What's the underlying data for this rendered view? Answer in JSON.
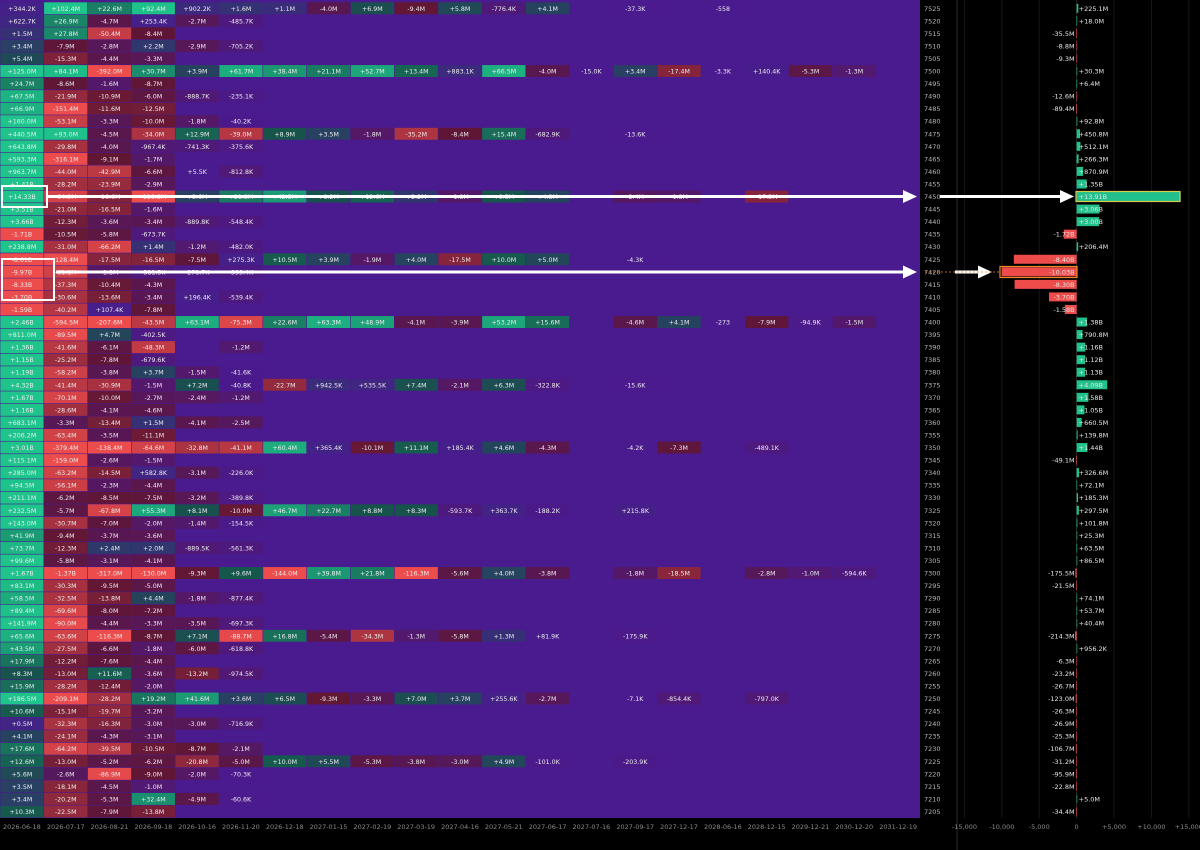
{
  "heatmap": {
    "dates": [
      "2026-06-18",
      "2026-07-17",
      "2026-08-21",
      "2026-09-18",
      "2026-10-16",
      "2026-11-20",
      "2026-12-18",
      "2027-01-15",
      "2027-02-19",
      "2027-03-19",
      "2027-04-16",
      "2027-05-21",
      "2027-06-17",
      "2027-07-16",
      "2027-09-17",
      "2027-12-17",
      "2028-06-16",
      "2028-12-15",
      "2029-12-21",
      "2030-12-20",
      "2031-12-19"
    ],
    "rows": [
      [
        "+344.2K",
        "+102.4M",
        "+22.6M",
        "+92.4M",
        "+902.2K",
        "+1.6M",
        "+1.1M",
        "-4.0M",
        "+6.9M",
        "-9.4M",
        "+5.8M",
        "-776.4K",
        "+4.1M",
        null,
        "-37.3K",
        null,
        "-558"
      ],
      [
        "+622.7K",
        "+26.9M",
        "-4.7M",
        "+253.4K",
        "-2.7M",
        "-485.7K"
      ],
      [
        "+1.5M",
        "+27.8M",
        "-50.4M",
        "-8.4M"
      ],
      [
        "+3.4M",
        "-7.9M",
        "-2.8M",
        "+2.2M",
        "-2.9M",
        "-705.2K"
      ],
      [
        "+5.4M",
        "-15.3M",
        "-4.4M",
        "-3.3M"
      ],
      [
        "+125.0M",
        "+84.1M",
        "-392.0M",
        "+30.7M",
        "+3.9M",
        "+61.7M",
        "+38.4M",
        "+21.1M",
        "+52.7M",
        "+13.4M",
        "+883.1K",
        "+66.5M",
        "-4.0M",
        "-15.0K",
        "+3.4M",
        "-17.4M",
        "-3.3K",
        "+140.4K",
        "-5.3M",
        "-1.3M"
      ],
      [
        "+24.7M",
        "-8.6M",
        "-1.6M",
        "-8.7M"
      ],
      [
        "+67.5M",
        "-21.9M",
        "-10.9M",
        "-6.0M",
        "-888.7K",
        "-235.1K"
      ],
      [
        "+66.9M",
        "-151.4M",
        "-11.6M",
        "-12.5M"
      ],
      [
        "+160.0M",
        "-53.1M",
        "-3.3M",
        "-10.0M",
        "-1.8M",
        "-40.2K"
      ],
      [
        "+440.5M",
        "+93.0M",
        "-4.5M",
        "-34.0M",
        "+12.9M",
        "-39.0M",
        "+8.9M",
        "+3.5M",
        "-1.8M",
        "-35.2M",
        "-8.4M",
        "+15.4M",
        "-682.9K",
        null,
        "-13.6K"
      ],
      [
        "+643.8M",
        "-29.8M",
        "-4.0M",
        "-967.4K",
        "-741.3K",
        "-375.6K"
      ],
      [
        "+593.3M",
        "-316.1M",
        "-9.1M",
        "-1.7M"
      ],
      [
        "+963.7M",
        "-44.0M",
        "-42.9M",
        "-6.6M",
        "+5.5K",
        "-812.8K"
      ],
      [
        "+1.41B",
        "-28.2M",
        "-23.9M",
        "-2.9M"
      ],
      [
        "+14.33B",
        "-64.9M",
        "-16.6M",
        "-116.8M",
        "+3.6M",
        "+21.8M",
        "+42.5M",
        "+8.2M",
        "+12.6M",
        "+2.2M",
        "-1.8M",
        "+9.5M",
        "+4.3M",
        null,
        "-2.4M",
        "-1.8M",
        null,
        "-17.3M"
      ],
      [
        "+3.51B",
        "-21.0M",
        "-16.5M",
        "-1.6M"
      ],
      [
        "+3.66B",
        "-12.3M",
        "-3.6M",
        "-3.4M",
        "-889.8K",
        "-548.4K"
      ],
      [
        "-1.71B",
        "-10.5M",
        "-5.8M",
        "-673.7K"
      ],
      [
        "+238.8M",
        "-31.0M",
        "-66.2M",
        "+1.4M",
        "-1.2M",
        "-482.0K"
      ],
      [
        "-8.61B",
        "-128.4M",
        "-17.5M",
        "-16.5M",
        "-7.5M",
        "+275.3K",
        "+10.5M",
        "+3.9M",
        "-1.9M",
        "+4.0M",
        "-17.5M",
        "+10.0M",
        "+5.0M",
        null,
        "-4.3K"
      ],
      [
        "-9.97B",
        "-61.1M",
        "-1.8M",
        "-581.5K",
        "-278.7K",
        "-399.4K"
      ],
      [
        "-8.33B",
        "-37.3M",
        "-10.4M",
        "-4.3M"
      ],
      [
        "-3.70B",
        "-30.6M",
        "-13.6M",
        "-3.4M",
        "+196.4K",
        "-539.4K"
      ],
      [
        "-1.59B",
        "-40.2M",
        "+107.4K",
        "-7.8M"
      ],
      [
        "+2.46B",
        "-594.5M",
        "-207.6M",
        "-43.5M",
        "+63.1M",
        "-75.3M",
        "+22.6M",
        "+63.3M",
        "+48.9M",
        "-4.1M",
        "-3.9M",
        "+53.2M",
        "+15.6M",
        null,
        "-4.6M",
        "+4.1M",
        "-273",
        "-7.9M",
        "-94.9K",
        "-1.5M"
      ],
      [
        "+811.0M",
        "-89.5M",
        "+4.7M",
        "-402.5K"
      ],
      [
        "+1.36B",
        "-41.6M",
        "-6.1M",
        "-48.3M",
        null,
        "-1.2M"
      ],
      [
        "+1.15B",
        "-25.2M",
        "-7.8M",
        "-679.6K"
      ],
      [
        "+1.19B",
        "-58.2M",
        "-3.8M",
        "+3.7M",
        "-1.5M",
        "-41.6K"
      ],
      [
        "+4.32B",
        "-41.4M",
        "-30.9M",
        "-1.5M",
        "+7.2M",
        "-40.8K",
        "-22.7M",
        "+942.5K",
        "+535.5K",
        "+7.4M",
        "-2.1M",
        "+6.3M",
        "-322.8K",
        null,
        "-15.6K"
      ],
      [
        "+1.67B",
        "-70.1M",
        "-10.0M",
        "-2.7M",
        "-2.4M",
        "-1.2M"
      ],
      [
        "+1.16B",
        "-28.6M",
        "-4.1M",
        "-4.6M"
      ],
      [
        "+683.1M",
        "-3.3M",
        "-13.4M",
        "+1.5M",
        "-4.1M",
        "-2.5M"
      ],
      [
        "+206.2M",
        "-63.4M",
        "-3.5M",
        "-11.1M"
      ],
      [
        "+3.01B",
        "-379.4M",
        "-138.4M",
        "-64.6M",
        "-32.8M",
        "-41.1M",
        "+60.4M",
        "+365.4K",
        "-10.1M",
        "+11.1M",
        "+185.4K",
        "+4.6M",
        "-4.3M",
        null,
        "-4.2K",
        "-7.3M",
        null,
        "-489.1K"
      ],
      [
        "+115.1M",
        "-159.0M",
        "-2.6M",
        "-1.5M"
      ],
      [
        "+285.0M",
        "-63.2M",
        "-14.5M",
        "+582.8K",
        "-3.1M",
        "-226.0K"
      ],
      [
        "+94.5M",
        "-56.1M",
        "-2.3M",
        "-4.4M"
      ],
      [
        "+211.1M",
        "-6.2M",
        "-8.5M",
        "-7.5M",
        "-3.2M",
        "-389.8K"
      ],
      [
        "+232.5M",
        "-5.7M",
        "-67.8M",
        "+55.3M",
        "+8.1M",
        "-10.0M",
        "+46.7M",
        "+22.7M",
        "+8.8M",
        "+8.3M",
        "-593.7K",
        "+363.7K",
        "-188.2K",
        null,
        "+215.8K"
      ],
      [
        "+143.0M",
        "-30.7M",
        "-7.0M",
        "-2.0M",
        "-1.4M",
        "-154.5K"
      ],
      [
        "+41.9M",
        "-9.4M",
        "-3.7M",
        "-3.6M"
      ],
      [
        "+73.7M",
        "-12.3M",
        "+2.4M",
        "+2.0M",
        "-889.5K",
        "-561.3K"
      ],
      [
        "+99.6M",
        "-5.8M",
        "-3.1M",
        "-4.1M"
      ],
      [
        "+1.67B",
        "-1.37B",
        "-317.0M",
        "-130.0M",
        "-9.3M",
        "+9.6M",
        "-144.0M",
        "+39.8M",
        "+21.8M",
        "-116.3M",
        "-5.6M",
        "+4.0M",
        "-3.8M",
        null,
        "-1.8M",
        "-18.5M",
        null,
        "-2.8M",
        "-1.0M",
        "-594.6K"
      ],
      [
        "+83.1M",
        "-30.3M",
        "-9.5M",
        "-5.0M"
      ],
      [
        "+58.5M",
        "-32.5M",
        "-13.8M",
        "+4.4M",
        "-1.8M",
        "-877.4K"
      ],
      [
        "+89.4M",
        "-69.6M",
        "-8.0M",
        "-7.2M"
      ],
      [
        "+141.9M",
        "-90.0M",
        "-4.4M",
        "-3.3M",
        "-3.5M",
        "-697.3K"
      ],
      [
        "+65.6M",
        "-63.6M",
        "-116.3M",
        "-8.7M",
        "+7.1M",
        "-88.7M",
        "+16.8M",
        "-5.4M",
        "-34.3M",
        "-1.3M",
        "-5.8M",
        "+1.3M",
        "+81.9K",
        null,
        "-175.9K"
      ],
      [
        "+43.5M",
        "-27.5M",
        "-6.6M",
        "-1.8M",
        "-6.0M",
        "-618.8K"
      ],
      [
        "+17.9M",
        "-12.2M",
        "-7.6M",
        "-4.4M"
      ],
      [
        "+8.3M",
        "-13.0M",
        "+11.6M",
        "-3.6M",
        "-13.2M",
        "-974.5K"
      ],
      [
        "+15.9M",
        "-28.2M",
        "-12.4M",
        "-2.0M"
      ],
      [
        "+186.5M",
        "-209.1M",
        "-28.2M",
        "+19.2M",
        "+41.6M",
        "+3.6M",
        "+6.5M",
        "-9.3M",
        "-3.3M",
        "+7.0M",
        "+3.7M",
        "+255.6K",
        "-2.7M",
        null,
        "-7.1K",
        "-854.4K",
        null,
        "-797.0K"
      ],
      [
        "+10.6M",
        "-15.1M",
        "-19.7M",
        "-3.2M"
      ],
      [
        "+0.5M",
        "-32.3M",
        "-16.3M",
        "-3.0M",
        "-3.0M",
        "-716.9K"
      ],
      [
        "+4.1M",
        "-24.1M",
        "-4.3M",
        "-3.1M"
      ],
      [
        "+17.6M",
        "-64.2M",
        "-39.5M",
        "-10.5M",
        "-8.7M",
        "-2.1M"
      ],
      [
        "+12.6M",
        "-13.0M",
        "-5.2M",
        "-6.2M",
        "-20.8M",
        "-5.0M",
        "+10.0M",
        "+5.5M",
        "-5.3M",
        "-3.8M",
        "-3.0M",
        "+4.9M",
        "-101.0K",
        null,
        "-203.9K"
      ],
      [
        "+5.6M",
        "-2.6M",
        "-86.9M",
        "-9.0M",
        "-2.0M",
        "-70.3K"
      ],
      [
        "+3.5M",
        "-18.1M",
        "-4.5M",
        "-1.0M"
      ],
      [
        "+3.4M",
        "-20.2M",
        "-5.3M",
        "+32.4M",
        "-4.9M",
        "-60.6K"
      ],
      [
        "+10.3M",
        "-22.5M",
        "-7.9M",
        "-13.8M"
      ]
    ]
  },
  "chart_data": {
    "type": "bar",
    "orientation": "horizontal",
    "categories": [
      7525,
      7520,
      7515,
      7510,
      7505,
      7500,
      7495,
      7490,
      7485,
      7480,
      7475,
      7470,
      7465,
      7460,
      7455,
      7450,
      7445,
      7440,
      7435,
      7430,
      7425,
      7420,
      7415,
      7410,
      7405,
      7400,
      7395,
      7390,
      7385,
      7380,
      7375,
      7370,
      7365,
      7360,
      7355,
      7350,
      7345,
      7340,
      7335,
      7330,
      7325,
      7320,
      7315,
      7310,
      7305,
      7300,
      7295,
      7290,
      7285,
      7280,
      7275,
      7270,
      7265,
      7260,
      7255,
      7250,
      7245,
      7240,
      7235,
      7230,
      7225,
      7220,
      7215,
      7210,
      7205
    ],
    "values": [
      225.1,
      18.0,
      -35.5,
      -8.8,
      -9.3,
      30.3,
      6.4,
      -12.6,
      -89.4,
      92.8,
      450.8,
      512.1,
      266.3,
      870.9,
      1350,
      13910,
      3060,
      3000,
      -1720,
      206.4,
      -8400,
      -10030,
      -8300,
      -3700,
      -1580,
      1380,
      790.8,
      1160,
      1120,
      1130,
      4090,
      1580,
      1050,
      660.5,
      139.8,
      1440,
      -49.1,
      326.6,
      72.1,
      185.3,
      297.5,
      101.8,
      25.3,
      63.5,
      86.5,
      -175.5,
      -21.5,
      74.1,
      53.7,
      40.4,
      -214.3,
      0.9562,
      -6.3,
      -23.2,
      -26.7,
      -123.0,
      -26.3,
      -26.9,
      -25.3,
      -106.7,
      -31.2,
      -95.9,
      -22.8,
      5.0,
      -34.4
    ],
    "value_labels": [
      "+225.1M",
      "+18.0M",
      "-35.5M",
      "-8.8M",
      "-9.3M",
      "+30.3M",
      "+6.4M",
      "-12.6M",
      "-89.4M",
      "+92.8M",
      "+450.8M",
      "+512.1M",
      "+266.3M",
      "+870.9M",
      "+1.35B",
      "+13.91B",
      "+3.06B",
      "+3.00B",
      "-1.72B",
      "+206.4M",
      "-8.40B",
      "-10.03B",
      "-8.30B",
      "-3.70B",
      "-1.58B",
      "+1.38B",
      "+790.8M",
      "+1.16B",
      "+1.12B",
      "+1.13B",
      "+4.09B",
      "+1.58B",
      "+1.05B",
      "+660.5M",
      "+139.8M",
      "+1.44B",
      "-49.1M",
      "+326.6M",
      "+72.1M",
      "+185.3M",
      "+297.5M",
      "+101.8M",
      "+25.3M",
      "+63.5M",
      "+86.5M",
      "-175.5M",
      "-21.5M",
      "+74.1M",
      "+53.7M",
      "+40.4M",
      "-214.3M",
      "+956.2K",
      "-6.3M",
      "-23.2M",
      "-26.7M",
      "-123.0M",
      "-26.3M",
      "-26.9M",
      "-25.3M",
      "-106.7M",
      "-31.2M",
      "-95.9M",
      "-22.8M",
      "+5.0M",
      "-34.4M"
    ],
    "positive_color": "#22c08c",
    "negative_color": "#ee4b4b",
    "xlim": [
      -16000,
      16500
    ],
    "xticks": [
      {
        "value": -15000,
        "label": "-15,000"
      },
      {
        "value": -10000,
        "label": "-10,000"
      },
      {
        "value": -5000,
        "label": "-5,000"
      },
      0,
      {
        "value": 5000,
        "label": "+5,000"
      },
      {
        "value": 10000,
        "label": "+10,000"
      },
      {
        "value": 15000,
        "label": "+15,000"
      }
    ]
  }
}
